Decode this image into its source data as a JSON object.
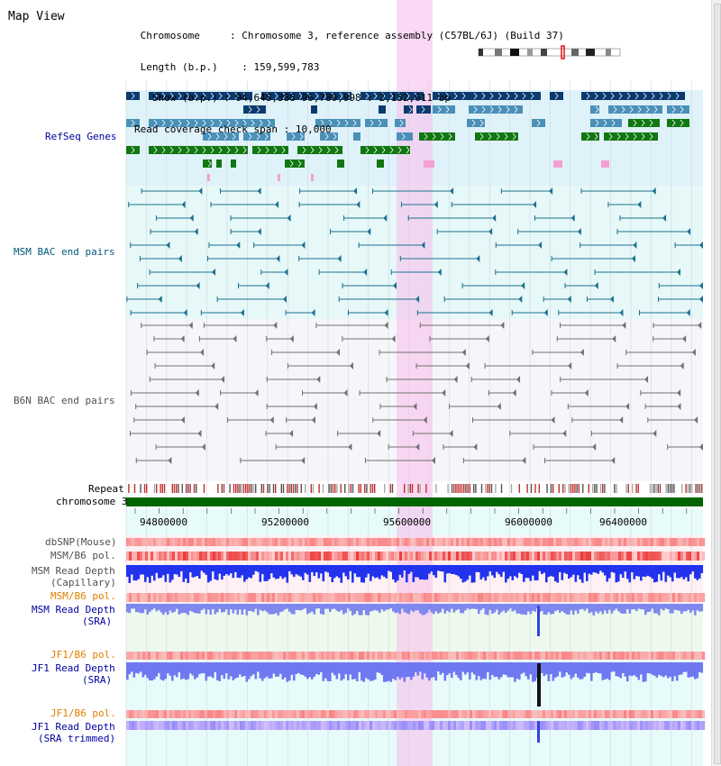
{
  "title": "Map View",
  "header": {
    "chromosome_label": "Chromosome",
    "chromosome_value": "Chromosome 3, reference assembly (C57BL/6J) (Build 37)",
    "length_label": "Length (b.p.)",
    "length_value": "159,599,783",
    "show_label": "Show (b.p.)",
    "show_value": "94,648,388-96,780,998 : 2,132,611 bp",
    "span_label": "Read coverage check span",
    "span_value": "10,000"
  },
  "tracks": {
    "refseq": "RefSeq Genes",
    "msm_bac": "MSM BAC end pairs",
    "b6n_bac": "B6N BAC end pairs",
    "repeat": "Repeat",
    "chromosome": "chromosome 3",
    "dbsnp": "dbSNP(Mouse)",
    "msm_b6_pol_1": "MSM/B6 pol.",
    "msm_read_depth_cap": "MSM Read Depth",
    "capillary": "(Capillary)",
    "msm_b6_pol_2": "MSM/B6 pol.",
    "msm_read_depth_sra": "MSM Read Depth",
    "sra_1": "(SRA)",
    "jf1_b6_pol_1": "JF1/B6 pol.",
    "jf1_read_depth": "JF1 Read Depth",
    "sra_2": "(SRA)",
    "jf1_b6_pol_2": "JF1/B6 pol.",
    "jf1_read_depth_trim": "JF1 Read Depth",
    "sra_trimmed": "(SRA trimmed)"
  },
  "axis_ticks": [
    "94800000",
    "95200000",
    "95600000",
    "96000000",
    "96400000"
  ],
  "colors": {
    "label_blue": "#0000a0",
    "label_teal": "#005a78",
    "label_gray": "#505050",
    "label_orange": "#e08000",
    "highlight": "#f8d8f0",
    "chromosome_bar": "#006400"
  }
}
